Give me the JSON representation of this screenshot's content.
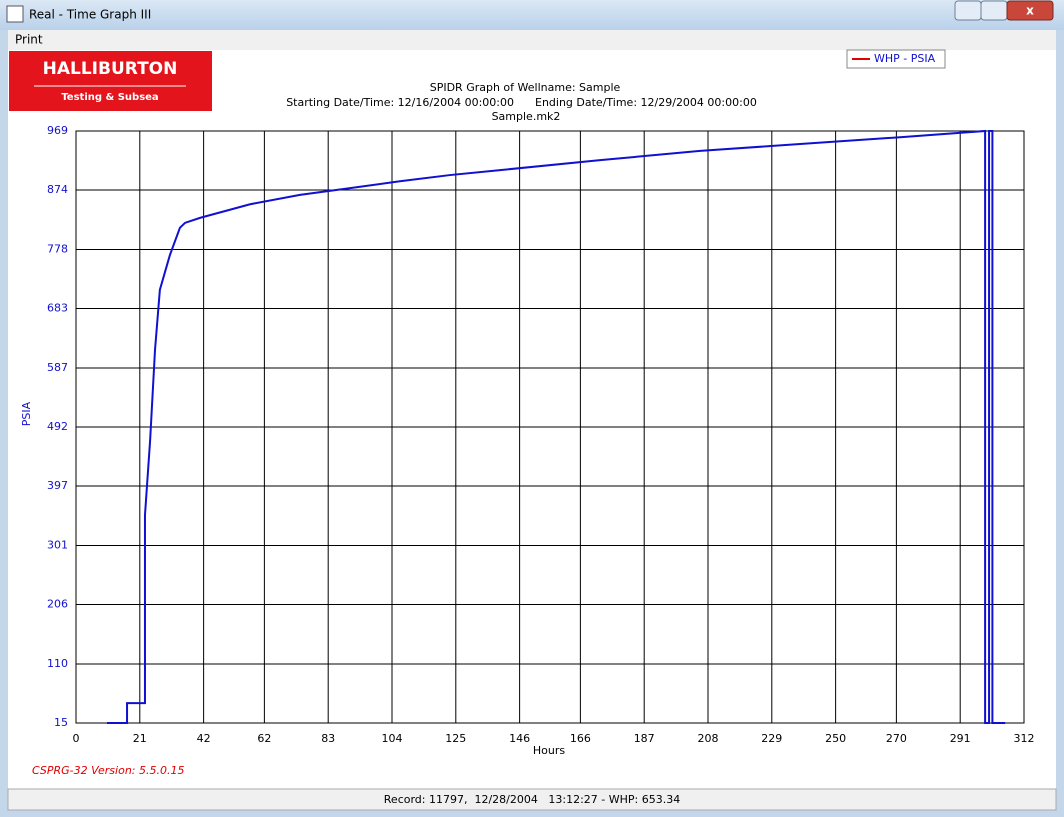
{
  "window": {
    "title": "Real - Time Graph III"
  },
  "menu": {
    "items": [
      "Print"
    ]
  },
  "logo": {
    "name": "HALLIBURTON",
    "subtitle": "Testing & Subsea"
  },
  "chart_data": {
    "type": "line",
    "title": "SPIDR Graph of Wellname: Sample",
    "start": "Starting Date/Time: 12/16/2004 00:00:00",
    "end": "Ending Date/Time: 12/29/2004 00:00:00",
    "subtitle": "Sample.mk2",
    "x_label": "Hours",
    "y_label": "PSIA",
    "xlim": [
      0,
      312
    ],
    "xticks": [
      0,
      21,
      42,
      62,
      83,
      104,
      125,
      146,
      166,
      187,
      208,
      229,
      250,
      270,
      291,
      312
    ],
    "ylim": [
      15,
      969
    ],
    "yticks": [
      15,
      110,
      206,
      301,
      397,
      492,
      587,
      683,
      778,
      874,
      969
    ],
    "grid": true,
    "legend": "top-right",
    "legend_swatch_color": "#e00000",
    "series": [
      {
        "name": "WHP - PSIA",
        "color": "#1010d0",
        "x": [
          10.2,
          16.8,
          16.8,
          22.7,
          22.7,
          24.4,
          26.0,
          27.6,
          30.9,
          34.2,
          35.9,
          40.8,
          57.3,
          73.7,
          90.2,
          106.6,
          123.1,
          139.6,
          172.5,
          205.4,
          238.3,
          271.2,
          299.2,
          299.2,
          300.5,
          300.5,
          301.6,
          301.6,
          305.8
        ],
        "values": [
          15,
          15,
          47,
          47,
          350,
          471,
          616,
          713,
          769,
          813,
          821,
          829,
          851,
          866,
          877,
          888,
          898,
          906,
          922,
          937,
          948,
          959,
          969,
          15,
          15,
          969,
          969,
          15,
          15
        ]
      }
    ]
  },
  "version": "CSPRG-32 Version: 5.5.0.15",
  "status": "Record: 11797,  12/28/2004   13:12:27 - WHP: 653.34"
}
